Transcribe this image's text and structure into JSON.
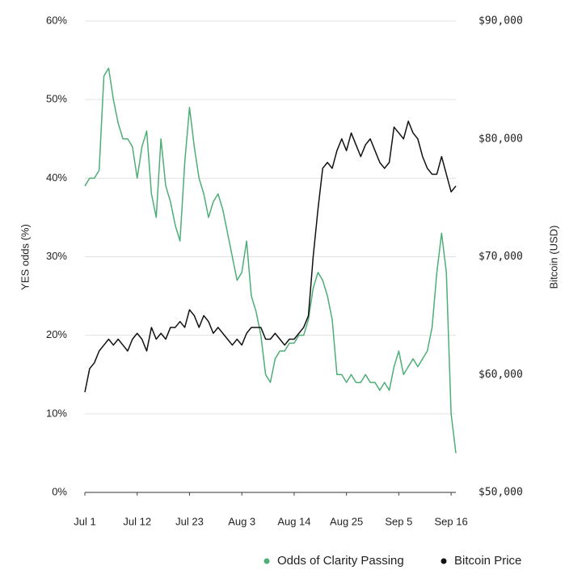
{
  "chart_data": {
    "type": "line",
    "x": [
      "Jul 1",
      "Jul 2",
      "Jul 3",
      "Jul 4",
      "Jul 5",
      "Jul 6",
      "Jul 7",
      "Jul 8",
      "Jul 9",
      "Jul 10",
      "Jul 11",
      "Jul 12",
      "Jul 13",
      "Jul 14",
      "Jul 15",
      "Jul 16",
      "Jul 17",
      "Jul 18",
      "Jul 19",
      "Jul 20",
      "Jul 21",
      "Jul 22",
      "Jul 23",
      "Jul 24",
      "Jul 25",
      "Jul 26",
      "Jul 27",
      "Jul 28",
      "Jul 29",
      "Jul 30",
      "Jul 31",
      "Aug 1",
      "Aug 2",
      "Aug 3",
      "Aug 4",
      "Aug 5",
      "Aug 6",
      "Aug 7",
      "Aug 8",
      "Aug 9",
      "Aug 10",
      "Aug 11",
      "Aug 12",
      "Aug 13",
      "Aug 14",
      "Aug 15",
      "Aug 16",
      "Aug 17",
      "Aug 18",
      "Aug 19",
      "Aug 20",
      "Aug 21",
      "Aug 22",
      "Aug 23",
      "Aug 24",
      "Aug 25",
      "Aug 26",
      "Aug 27",
      "Aug 28",
      "Aug 29",
      "Aug 30",
      "Aug 31",
      "Sep 1",
      "Sep 2",
      "Sep 3",
      "Sep 4",
      "Sep 5",
      "Sep 6",
      "Sep 7",
      "Sep 8",
      "Sep 9",
      "Sep 10",
      "Sep 11",
      "Sep 12",
      "Sep 13",
      "Sep 14",
      "Sep 15",
      "Sep 16",
      "Sep 17"
    ],
    "xticks": [
      "Jul 1",
      "Jul 12",
      "Jul 23",
      "Aug 3",
      "Aug 14",
      "Aug 25",
      "Sep 5",
      "Sep 16"
    ],
    "ylabel": "YES odds (%)",
    "y2label": "Bitcoin (USD)",
    "ylim": [
      0,
      60
    ],
    "yticks": [
      {
        "value": 0,
        "label": "0%"
      },
      {
        "value": 10,
        "label": "10%"
      },
      {
        "value": 20,
        "label": "20%"
      },
      {
        "value": 30,
        "label": "30%"
      },
      {
        "value": 40,
        "label": "40%"
      },
      {
        "value": 50,
        "label": "50%"
      },
      {
        "value": 60,
        "label": "60%"
      }
    ],
    "y2lim": [
      50000,
      90000
    ],
    "y2ticks": [
      {
        "value": 50000,
        "label": "$50,000"
      },
      {
        "value": 60000,
        "label": "$60,000"
      },
      {
        "value": 70000,
        "label": "$70,000"
      },
      {
        "value": 80000,
        "label": "$80,000"
      },
      {
        "value": 90000,
        "label": "$90,000"
      }
    ],
    "grid": true,
    "series": [
      {
        "name": "Odds of Clarity Passing",
        "color": "#4dae77",
        "values": [
          39,
          40,
          40,
          41,
          53,
          54,
          50,
          47,
          45,
          45,
          44,
          40,
          44,
          46,
          38,
          35,
          45,
          39,
          37,
          34,
          32,
          42,
          49,
          44,
          40,
          38,
          35,
          37,
          38,
          36,
          33,
          30,
          27,
          28,
          32,
          25,
          23,
          20,
          15,
          14,
          17,
          18,
          18,
          19,
          19,
          20,
          20,
          22,
          26,
          28,
          27,
          25,
          22,
          15,
          15,
          14,
          15,
          14,
          14,
          15,
          14,
          14,
          13,
          14,
          13,
          16,
          18,
          15,
          16,
          17,
          16,
          17,
          18,
          21,
          28,
          33,
          28,
          10,
          5
        ]
      },
      {
        "name": "Bitcoin Price",
        "color": "#111111",
        "axis": "y2",
        "values": [
          58500,
          60500,
          61000,
          62000,
          62500,
          63000,
          62500,
          63000,
          62500,
          62000,
          63000,
          63500,
          63000,
          62000,
          64000,
          63000,
          63500,
          63000,
          64000,
          64000,
          64500,
          64000,
          65500,
          65000,
          64000,
          65000,
          64500,
          63500,
          64000,
          63500,
          63000,
          62500,
          63000,
          62500,
          63500,
          64000,
          64000,
          64000,
          63000,
          63000,
          63500,
          63000,
          62500,
          63000,
          63000,
          63500,
          64000,
          65000,
          70000,
          74000,
          77500,
          78000,
          77500,
          79000,
          80000,
          79000,
          80500,
          79500,
          78500,
          79500,
          80000,
          79000,
          78000,
          77500,
          78000,
          81000,
          80500,
          80000,
          81500,
          80500,
          80000,
          78500,
          77500,
          77000,
          77000,
          78500,
          77000,
          75500,
          76000
        ]
      }
    ]
  }
}
